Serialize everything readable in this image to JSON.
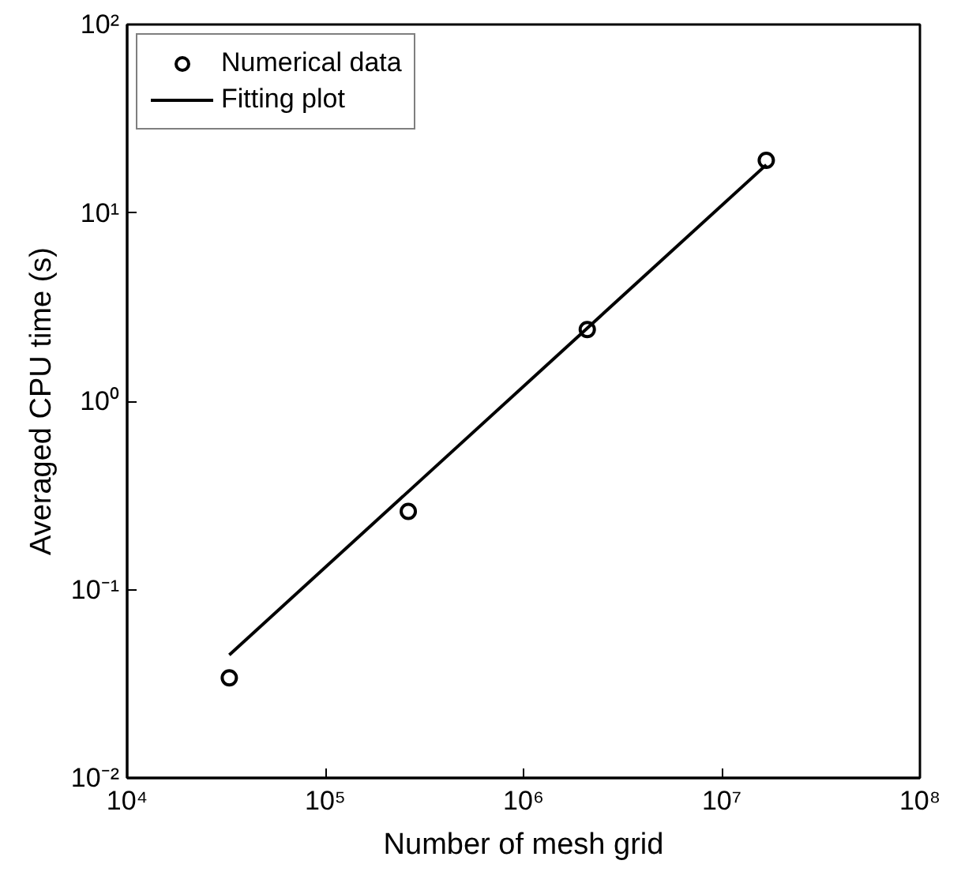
{
  "chart_data": {
    "type": "scatter",
    "xlabel": "Number of mesh grid",
    "ylabel": "Averaged CPU time (s)",
    "log": "xy",
    "xlim": [
      10000,
      100000000
    ],
    "ylim": [
      0.01,
      100
    ],
    "xticks": [
      {
        "value": 10000,
        "label": "10⁴"
      },
      {
        "value": 100000,
        "label": "10⁵"
      },
      {
        "value": 1000000,
        "label": "10⁶"
      },
      {
        "value": 10000000,
        "label": "10⁷"
      },
      {
        "value": 100000000,
        "label": "10⁸"
      }
    ],
    "yticks": [
      {
        "value": 0.01,
        "label": "10⁻²"
      },
      {
        "value": 0.1,
        "label": "10⁻¹"
      },
      {
        "value": 1,
        "label": "10⁰"
      },
      {
        "value": 10,
        "label": "10¹"
      },
      {
        "value": 100,
        "label": "10²"
      }
    ],
    "grid": false,
    "legend": "top left",
    "series": [
      {
        "name": "Numerical data",
        "marker": "circle",
        "color": "#000000",
        "x": [
          32768,
          262144,
          2097152,
          16777216
        ],
        "values": [
          0.034,
          0.26,
          2.4,
          19
        ]
      },
      {
        "name": "Fitting plot",
        "type": "line",
        "line_style": "solid",
        "color": "#000000",
        "x": [
          32768,
          16777216
        ],
        "values": [
          0.045,
          18
        ]
      }
    ]
  }
}
